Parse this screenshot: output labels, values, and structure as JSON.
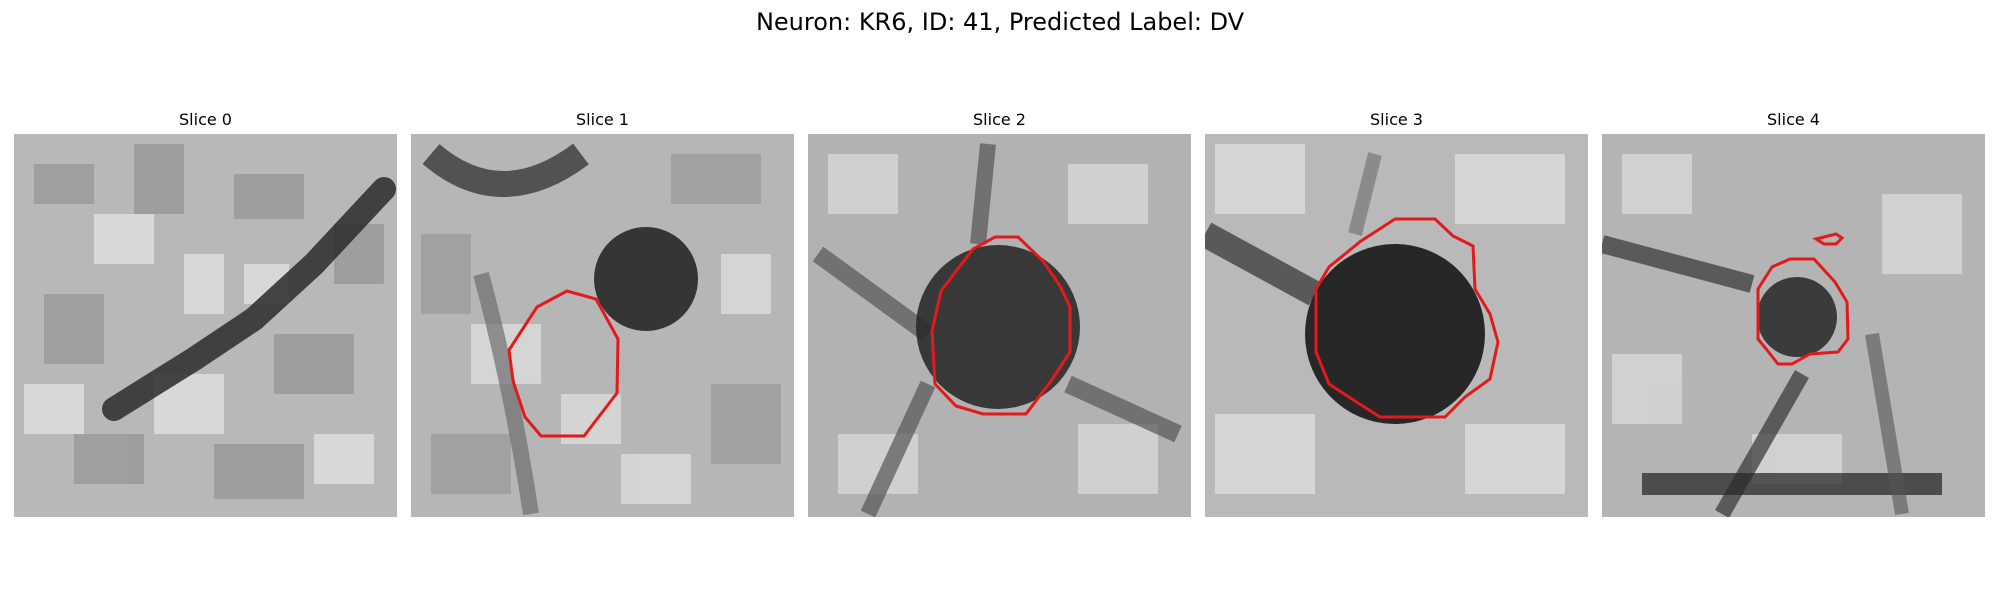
{
  "figure": {
    "title": "Neuron: KR6, ID: 41, Predicted Label: DV"
  },
  "panels": [
    {
      "title": "Slice 0"
    },
    {
      "title": "Slice 1"
    },
    {
      "title": "Slice 2"
    },
    {
      "title": "Slice 3"
    },
    {
      "title": "Slice 4"
    }
  ],
  "colors": {
    "contour": "#e31a1c",
    "background": "#ffffff",
    "image_colormap": "gray"
  }
}
